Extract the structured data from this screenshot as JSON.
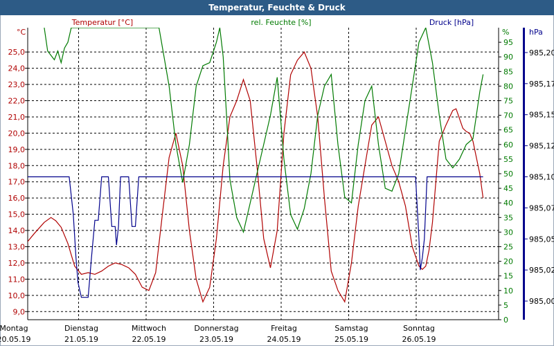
{
  "title": "Temperatur, Feuchte & Druck",
  "colors": {
    "temperature": "#b00000",
    "humidity": "#007a00",
    "pressure": "#00008b",
    "title_bar": "#2d5b86"
  },
  "chart_data": {
    "type": "line",
    "grid": true,
    "x_ticks": [
      {
        "day": "Montag",
        "date": "20.05.19",
        "x": 0
      },
      {
        "day": "Dienstag",
        "date": "21.05.19",
        "x": 1
      },
      {
        "day": "Mittwoch",
        "date": "22.05.19",
        "x": 2
      },
      {
        "day": "Donnerstag",
        "date": "23.05.19",
        "x": 3
      },
      {
        "day": "Freitag",
        "date": "24.05.19",
        "x": 4
      },
      {
        "day": "Samstag",
        "date": "25.05.19",
        "x": 5
      },
      {
        "day": "Sonntag",
        "date": "26.05.19",
        "x": 6
      }
    ],
    "xlim": [
      0,
      7
    ],
    "axes": {
      "temperature": {
        "label": "Temperatur [°C]",
        "unit": "°C",
        "ylim": [
          8.5,
          26.5
        ],
        "ticks": [
          "9,0",
          "10,0",
          "11,0",
          "12,0",
          "13,0",
          "14,0",
          "15,0",
          "16,0",
          "17,0",
          "18,0",
          "19,0",
          "20,0",
          "21,0",
          "22,0",
          "23,0",
          "24,0",
          "25,0"
        ],
        "tick_values": [
          9,
          10,
          11,
          12,
          13,
          14,
          15,
          16,
          17,
          18,
          19,
          20,
          21,
          22,
          23,
          24,
          25
        ]
      },
      "humidity": {
        "label": "rel. Feuchte [%]",
        "unit": "%",
        "ylim": [
          0,
          100
        ],
        "ticks": [
          "0",
          "5",
          "10",
          "15",
          "20",
          "25",
          "30",
          "35",
          "40",
          "45",
          "50",
          "55",
          "60",
          "65",
          "70",
          "75",
          "80",
          "85",
          "90",
          "95"
        ],
        "tick_values": [
          0,
          5,
          10,
          15,
          20,
          25,
          30,
          35,
          40,
          45,
          50,
          55,
          60,
          65,
          70,
          75,
          80,
          85,
          90,
          95
        ]
      },
      "pressure": {
        "label": "Druck [hPa]",
        "unit": "hPa",
        "ylim": [
          984.985,
          985.22
        ],
        "ticks": [
          "985,00",
          "985,02",
          "985,05",
          "985,07",
          "985,10",
          "985,12",
          "985,15",
          "985,17",
          "985,20"
        ],
        "tick_values": [
          985.0,
          985.025,
          985.05,
          985.075,
          985.1,
          985.125,
          985.15,
          985.175,
          985.2
        ]
      }
    },
    "series": [
      {
        "name": "Temperatur [°C]",
        "axis": "temperature",
        "x": [
          0,
          0.1,
          0.2,
          0.3,
          0.45,
          0.55,
          0.62,
          0.7,
          0.8,
          0.9,
          1.0,
          1.1,
          1.2,
          1.3,
          1.4,
          1.5,
          1.6,
          1.7,
          1.8,
          1.9,
          2.0,
          2.1,
          2.2,
          2.3,
          2.4,
          2.5,
          2.6,
          2.7,
          2.8,
          2.9,
          3.0,
          3.1,
          3.2,
          3.3,
          3.4,
          3.5,
          3.6,
          3.7,
          3.8,
          3.9,
          4.0,
          4.1,
          4.2,
          4.3,
          4.4,
          4.5,
          4.6,
          4.7,
          4.8,
          4.9,
          5.0,
          5.1,
          5.2,
          5.3,
          5.4,
          5.5,
          5.6,
          5.7,
          5.8,
          5.9,
          6.0,
          6.05,
          6.1,
          6.15,
          6.2,
          6.3,
          6.4,
          6.5,
          6.55,
          6.65,
          6.7,
          6.75,
          6.8,
          6.85,
          6.9,
          6.95
        ],
        "y": [
          12.8,
          12.9,
          13.3,
          13.8,
          14.5,
          14.8,
          14.6,
          14.2,
          13.2,
          11.8,
          11.3,
          11.4,
          11.3,
          11.5,
          11.8,
          12.0,
          11.9,
          11.7,
          11.3,
          10.5,
          10.3,
          11.4,
          15.0,
          18.5,
          20.0,
          18.0,
          14.0,
          11.0,
          9.6,
          10.5,
          13.5,
          18.0,
          21.0,
          22.0,
          23.3,
          22.0,
          18.0,
          13.5,
          11.7,
          14.0,
          20.0,
          23.6,
          24.5,
          25.0,
          24.0,
          21.0,
          16.0,
          11.5,
          10.3,
          9.6,
          12.0,
          15.5,
          18.0,
          20.5,
          21.0,
          19.5,
          18.0,
          17.0,
          15.5,
          13.0,
          11.8,
          11.6,
          11.8,
          12.8,
          14.5,
          19.5,
          20.5,
          21.4,
          21.5,
          20.3,
          20.1,
          20.0,
          19.5,
          18.5,
          17.5,
          16.0
        ]
      },
      {
        "name": "rel. Feuchte [%]",
        "axis": "humidity",
        "x": [
          0.45,
          0.5,
          0.6,
          0.65,
          0.7,
          0.75,
          0.8,
          0.85,
          0.9,
          2.15,
          2.3,
          2.4,
          2.5,
          2.6,
          2.7,
          2.8,
          2.9,
          3.0,
          3.05,
          3.1,
          3.15,
          3.2,
          3.3,
          3.4,
          3.5,
          3.6,
          3.7,
          3.8,
          3.9,
          4.0,
          4.1,
          4.2,
          4.3,
          4.4,
          4.5,
          4.6,
          4.7,
          4.8,
          4.9,
          5.0,
          5.1,
          5.2,
          5.3,
          5.4,
          5.5,
          5.6,
          5.7,
          5.8,
          5.9,
          6.0,
          6.1,
          6.2,
          6.3,
          6.4,
          6.5,
          6.6,
          6.7,
          6.8,
          6.9,
          6.95
        ],
        "y": [
          100,
          92,
          89,
          92,
          88,
          93,
          95,
          100,
          100,
          100,
          80,
          60,
          47,
          60,
          80,
          87,
          88,
          95,
          100,
          90,
          70,
          48,
          35,
          30,
          40,
          50,
          60,
          70,
          83,
          55,
          36,
          31,
          38,
          50,
          70,
          80,
          84,
          60,
          42,
          40,
          60,
          75,
          80,
          60,
          45,
          44,
          50,
          65,
          80,
          95,
          100,
          88,
          70,
          55,
          52,
          55,
          60,
          62,
          78,
          84
        ]
      },
      {
        "name": "Druck [hPa]",
        "axis": "pressure",
        "x": [
          0,
          0.82,
          0.88,
          0.92,
          0.95,
          1.0,
          1.05,
          1.1,
          1.15,
          1.2,
          1.25,
          1.3,
          1.35,
          1.4,
          1.45,
          1.5,
          1.52,
          1.55,
          1.58,
          1.62,
          1.65,
          1.7,
          1.75,
          1.8,
          1.85,
          1.88,
          1.92,
          1.95,
          2.0,
          5.9,
          5.95,
          6.0,
          6.02,
          6.05,
          6.08,
          6.12,
          6.15,
          6.95
        ],
        "y": [
          985.1,
          985.1,
          985.07,
          985.035,
          985.015,
          985.003,
          985.003,
          985.003,
          985.035,
          985.065,
          985.065,
          985.1,
          985.1,
          985.1,
          985.06,
          985.06,
          985.045,
          985.06,
          985.1,
          985.1,
          985.1,
          985.1,
          985.06,
          985.06,
          985.1,
          985.1,
          985.1,
          985.1,
          985.1,
          985.1,
          985.1,
          985.05,
          985.025,
          985.035,
          985.05,
          985.1,
          985.1,
          985.1
        ]
      }
    ]
  }
}
